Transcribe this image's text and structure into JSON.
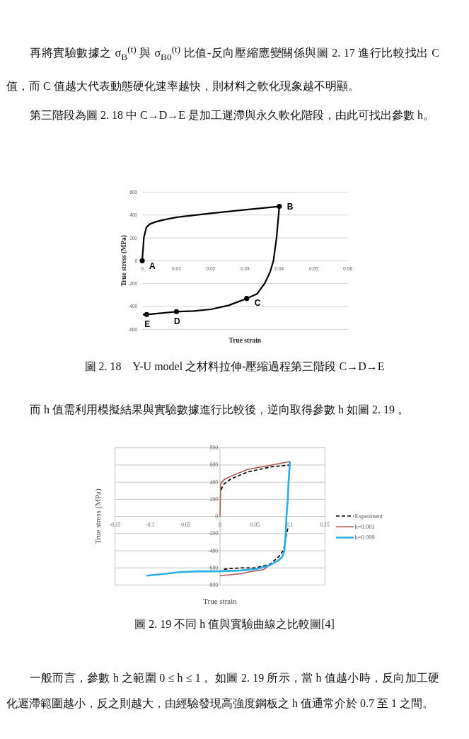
{
  "chart_data": [
    {
      "type": "line",
      "title": "圖 2. 18　Y-U model 之材料拉伸-壓縮過程第三階段 C→D→E",
      "xlabel": "True strain",
      "ylabel": "True stress (MPa)",
      "xlim": [
        0,
        0.06
      ],
      "ylim": [
        -600,
        600
      ],
      "xticks": [
        0,
        0.01,
        0.02,
        0.03,
        0.04,
        0.05,
        0.06
      ],
      "yticks": [
        -600,
        -400,
        -200,
        0,
        200,
        400,
        600
      ],
      "grid": "y",
      "series": [
        {
          "color": "#000000",
          "x": [
            0,
            0.0003,
            0.0005,
            0.0012,
            0.0022,
            0.0039,
            0.0067,
            0.0101,
            0.02,
            0.03,
            0.04,
            0.0398,
            0.0392,
            0.0383,
            0.0373,
            0.0357,
            0.0335,
            0.0305,
            0.027,
            0.0253,
            0.02,
            0.015,
            0.01,
            0.005,
            0.0013,
            0.0002
          ],
          "values": [
            0,
            120,
            205,
            290,
            320,
            340,
            360,
            380,
            415,
            445,
            475,
            400,
            200,
            0,
            -100,
            -200,
            -290,
            -330,
            -370,
            -390,
            -425,
            -440,
            -445,
            -460,
            -470,
            -470
          ]
        },
        {
          "type": "scatter",
          "color": "#000000",
          "marker": "circle",
          "x": [
            0,
            0.04,
            0.0305,
            0.01,
            0.0013
          ],
          "values": [
            0,
            475,
            -330,
            -445,
            -470
          ]
        }
      ],
      "annotations": [
        "再將實驗數據之 σ$_{B}$$^{(t)}$ 與 σ$_{B0}$$^{(t)}$ 比值-反向壓縮應變關係與圖 2. 17 進行比較找出 C 值，而 C 值越大代表動態硬化速率越快，則材料之軟化現象越不明顯。",
        "第三階段為圖 2. 18 中 C→D→E 是加工遲滯與永久軟化階段，由此可找出參數 h。",
        {
          "text": "A",
          "x": 0,
          "y": 0
        },
        {
          "text": "B",
          "x": 0.04,
          "y": 475
        },
        {
          "text": "C",
          "x": 0.0305,
          "y": -330
        },
        {
          "text": "D",
          "x": 0.01,
          "y": -445
        },
        {
          "text": "E",
          "x": 0.0013,
          "y": -470
        }
      ]
    },
    {
      "type": "line",
      "title": "圖 2. 19 不同 h 值與實驗曲線之比較圖[4]",
      "xlabel": "True strain",
      "ylabel": "True stress (MPa)",
      "xlim": [
        -0.15,
        0.15
      ],
      "ylim": [
        -800,
        800
      ],
      "xticks": [
        -0.15,
        -0.1,
        -0.05,
        0,
        0.05,
        0.1,
        0.15
      ],
      "yticks": [
        -800,
        -600,
        -400,
        -200,
        0,
        200,
        400,
        600,
        800
      ],
      "grid": "y",
      "legend": "right",
      "series": [
        {
          "name": "Experiment",
          "color": "#000000",
          "line_style": "dashed",
          "x": [
            0.002,
            0.003,
            0.006,
            0.016,
            0.04,
            0.074,
            0.1,
            null,
            0.097,
            0.094,
            0.091,
            0.084,
            0.071,
            0.05,
            0.03,
            0.011,
            0.004
          ],
          "values": [
            310,
            340,
            380,
            440,
            520,
            580,
            600,
            null,
            -140,
            -250,
            -390,
            -470,
            -560,
            -600,
            -600,
            -610,
            -620
          ]
        },
        {
          "name": "h=0.001",
          "color": "#b0504c",
          "line_style": "solid",
          "x": [
            0,
            0.001,
            0.006,
            0.016,
            0.04,
            0.074,
            0.1,
            null,
            0.068,
            0.062,
            0.04,
            0.028,
            0
          ],
          "values": [
            0,
            380,
            430,
            470,
            550,
            600,
            640,
            null,
            -590,
            -620,
            -650,
            -670,
            -690
          ]
        },
        {
          "name": "h=0.999",
          "color": "#2aaee6",
          "line_style": "solid",
          "x": [
            0.1,
            0.098,
            0.097,
            0.095,
            0.094,
            0.093,
            0.092,
            0.089,
            0.084,
            0.071,
            0.054,
            0.03,
            0,
            -0.03,
            -0.058,
            -0.08,
            -0.105
          ],
          "values": [
            640,
            400,
            200,
            0,
            -200,
            -300,
            -400,
            -470,
            -510,
            -570,
            -610,
            -630,
            -640,
            -640,
            -650,
            -670,
            -690
          ]
        }
      ],
      "annotations": [
        "而 h 值需利用模擬結果與實驗數據進行比較後，逆向取得參數 h 如圖 2. 19 。",
        "一般而言，參數 h 之範圍 0 ≤ h ≤ 1 。如圖 2. 19 所示，當 h 值越小時，反向加工硬化遲滯範圍越小，反之則越大，由經驗發現高強度鋼板之 h 值通常介於 0.7 至 1 之間。"
      ]
    }
  ]
}
